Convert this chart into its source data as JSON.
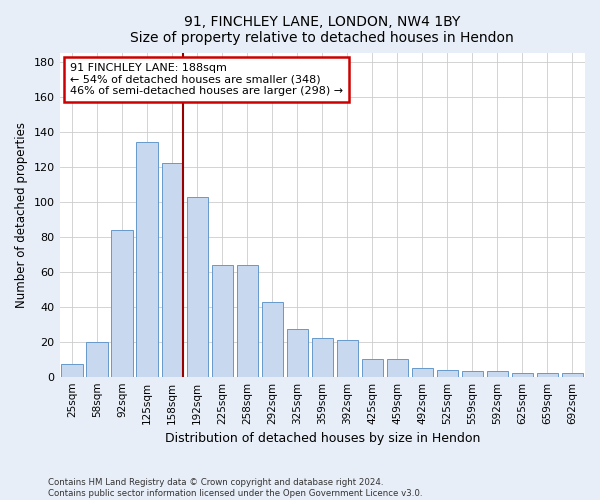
{
  "title1": "91, FINCHLEY LANE, LONDON, NW4 1BY",
  "title2": "Size of property relative to detached houses in Hendon",
  "xlabel": "Distribution of detached houses by size in Hendon",
  "ylabel": "Number of detached properties",
  "categories": [
    "25sqm",
    "58sqm",
    "92sqm",
    "125sqm",
    "158sqm",
    "192sqm",
    "225sqm",
    "258sqm",
    "292sqm",
    "325sqm",
    "359sqm",
    "392sqm",
    "425sqm",
    "459sqm",
    "492sqm",
    "525sqm",
    "559sqm",
    "592sqm",
    "625sqm",
    "659sqm",
    "692sqm"
  ],
  "values": [
    7,
    20,
    84,
    134,
    122,
    103,
    64,
    64,
    43,
    27,
    22,
    21,
    10,
    10,
    5,
    4,
    3,
    3,
    2,
    2,
    2
  ],
  "bar_color": "#c8d9ef",
  "bar_edge_color": "#6699cc",
  "vline_color": "#990000",
  "vline_index": 4,
  "annotation_text": "91 FINCHLEY LANE: 188sqm\n← 54% of detached houses are smaller (348)\n46% of semi-detached houses are larger (298) →",
  "annotation_box_color": "#ffffff",
  "annotation_box_edge": "#cc0000",
  "ylim": [
    0,
    185
  ],
  "yticks": [
    0,
    20,
    40,
    60,
    80,
    100,
    120,
    140,
    160,
    180
  ],
  "footer1": "Contains HM Land Registry data © Crown copyright and database right 2024.",
  "footer2": "Contains public sector information licensed under the Open Government Licence v3.0.",
  "fig_bg_color": "#e8eef7",
  "plot_bg_color": "#ffffff",
  "grid_color": "#cccccc"
}
